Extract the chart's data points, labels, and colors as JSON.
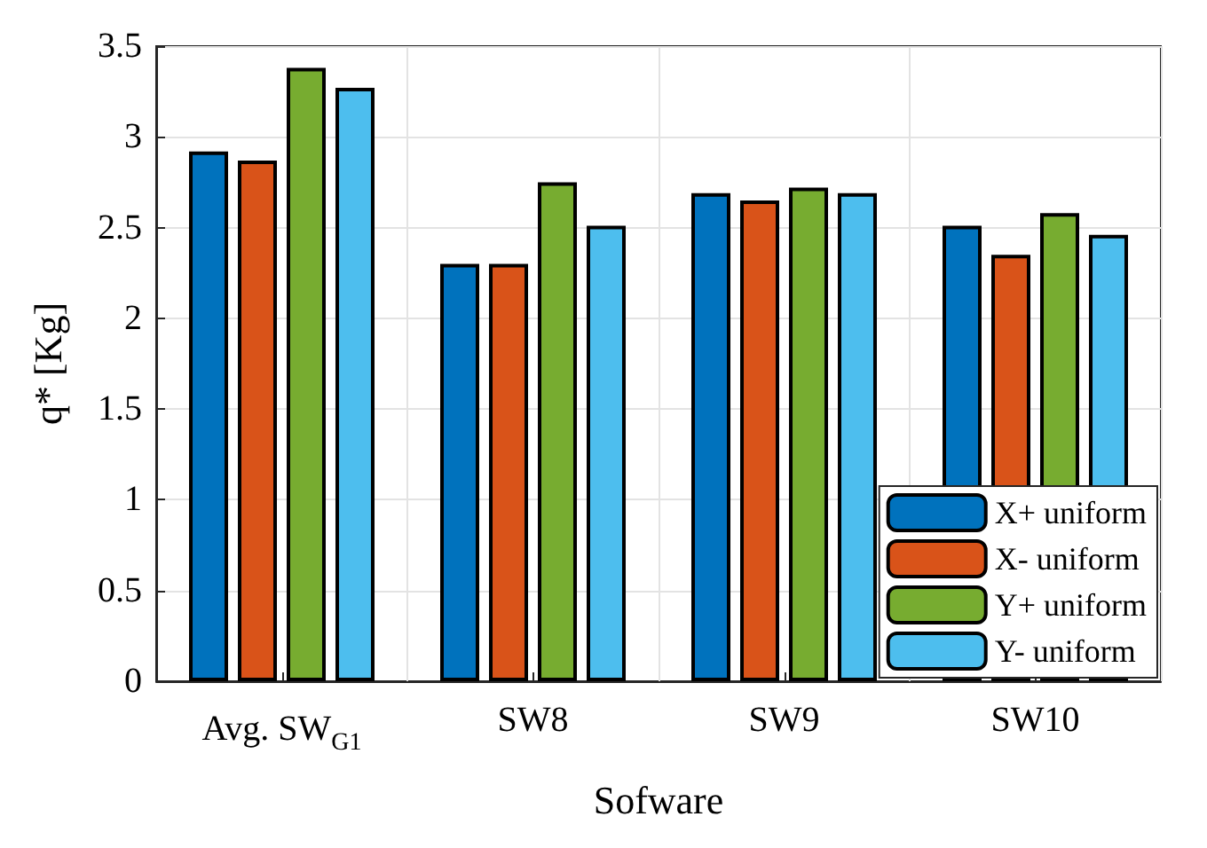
{
  "chart_data": {
    "type": "bar",
    "xlabel": "Sofware",
    "ylabel": "q* [Kg]",
    "categories": [
      "Avg. SW$_{G1}$",
      "SW8",
      "SW9",
      "SW10"
    ],
    "series": [
      {
        "name": "X+ uniform",
        "color": "#0072bd",
        "values": [
          2.92,
          2.3,
          2.69,
          2.51
        ]
      },
      {
        "name": "X- uniform",
        "color": "#d95319",
        "values": [
          2.87,
          2.3,
          2.65,
          2.35
        ]
      },
      {
        "name": "Y+ uniform",
        "color": "#77ac30",
        "values": [
          3.38,
          2.75,
          2.72,
          2.58
        ]
      },
      {
        "name": "Y- uniform",
        "color": "#4dbeee",
        "values": [
          3.27,
          2.51,
          2.69,
          2.46
        ]
      }
    ],
    "ylim": [
      0,
      3.5
    ],
    "yticks": [
      0,
      0.5,
      1,
      1.5,
      2,
      2.5,
      3,
      3.5
    ],
    "grid": true,
    "legend": "bottom right"
  }
}
